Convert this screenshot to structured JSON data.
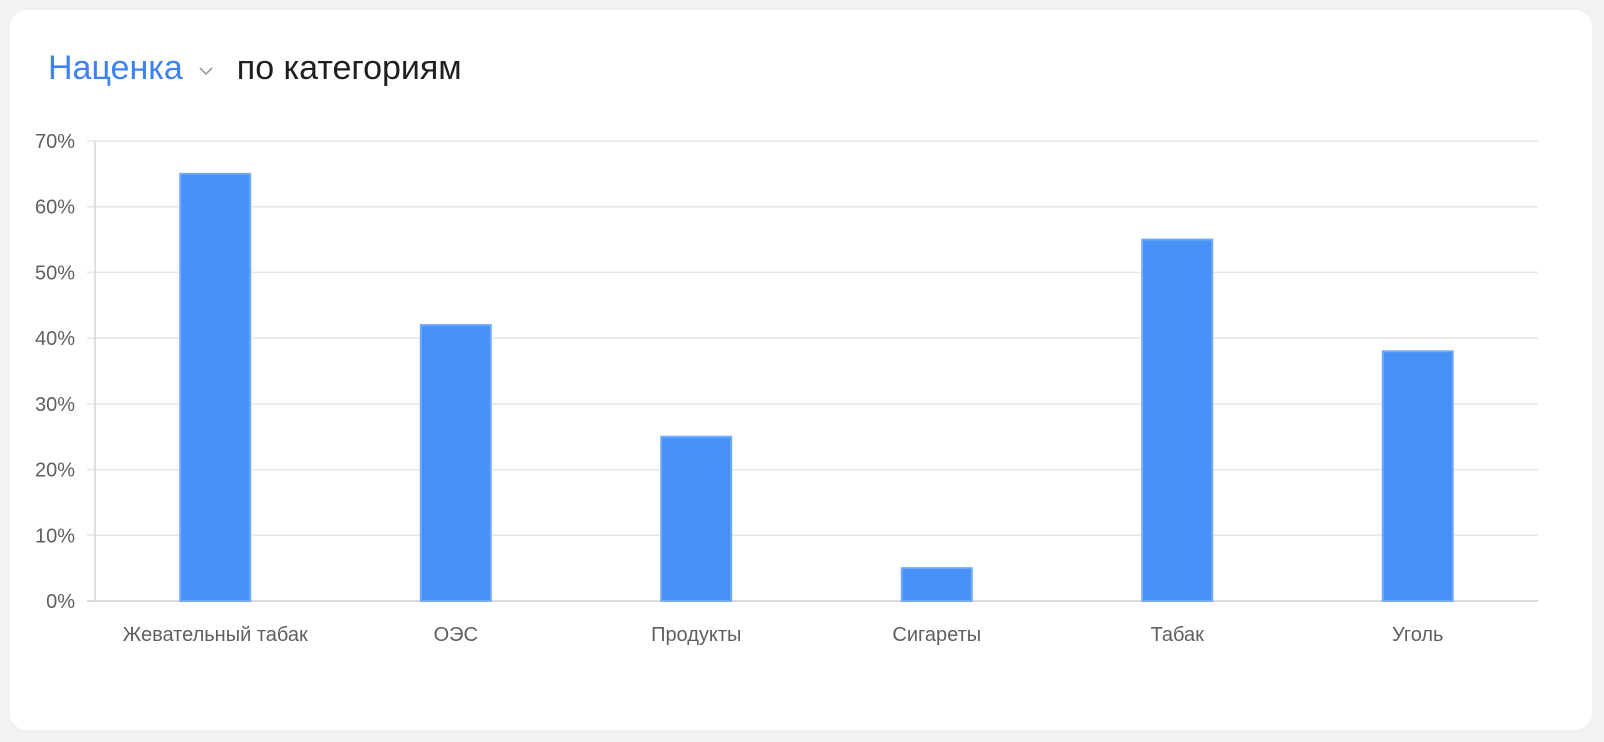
{
  "header": {
    "metric_label": "Наценка",
    "title_rest": "по категориям"
  },
  "colors": {
    "bar": "#4790f5",
    "bar_edge": "#73aaf7",
    "accent": "#3d82f0",
    "grid": "#e6e6e6"
  },
  "chart_data": {
    "type": "bar",
    "categories": [
      "Жевательный табак",
      "ОЭС",
      "Продукты",
      "Сигареты",
      "Табак",
      "Уголь"
    ],
    "values": [
      65,
      42,
      25,
      5,
      55,
      38
    ],
    "yticks": [
      "0%",
      "10%",
      "20%",
      "30%",
      "40%",
      "50%",
      "60%",
      "70%"
    ],
    "ylim": [
      0,
      70
    ],
    "grid": true,
    "title": "",
    "xlabel": "",
    "ylabel": ""
  }
}
